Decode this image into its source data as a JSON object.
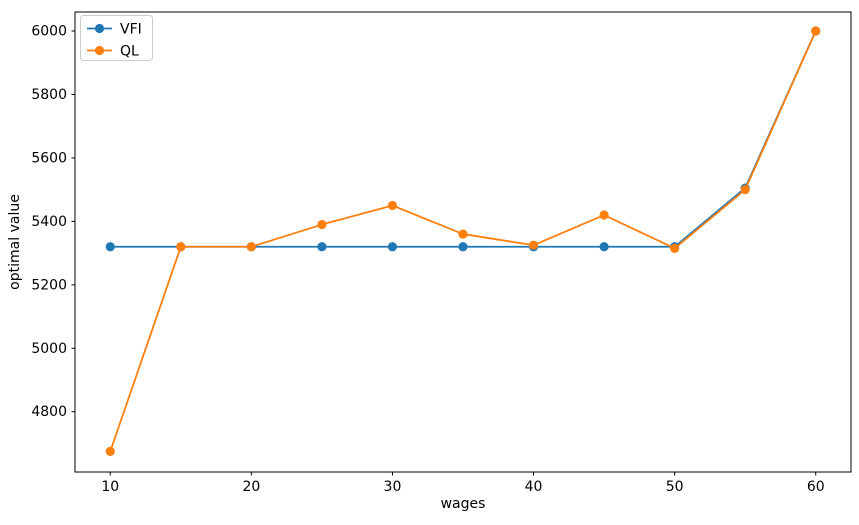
{
  "figure": {
    "background": "#ffffff",
    "spine_color": "#000000"
  },
  "chart_data": {
    "type": "line",
    "title": "",
    "xlabel": "wages",
    "ylabel": "optimal value",
    "x": [
      10,
      15,
      20,
      25,
      30,
      35,
      40,
      45,
      50,
      55,
      60
    ],
    "series": [
      {
        "name": "VFI",
        "color": "#1f77b4",
        "marker": "circle",
        "values": [
          5320,
          5320,
          5320,
          5320,
          5320,
          5320,
          5320,
          5320,
          5320,
          5505,
          6000
        ]
      },
      {
        "name": "QL",
        "color": "#ff7f0e",
        "marker": "circle",
        "values": [
          4675,
          5320,
          5320,
          5390,
          5450,
          5360,
          5325,
          5420,
          5315,
          5500,
          6000
        ]
      }
    ],
    "xlim": [
      7.5,
      62.5
    ],
    "ylim": [
      4610,
      6060
    ],
    "x_ticks": [
      10,
      20,
      30,
      40,
      50,
      60
    ],
    "y_ticks": [
      4800,
      5000,
      5200,
      5400,
      5600,
      5800,
      6000
    ],
    "grid": false,
    "legend_position": "upper left",
    "legend_labels": [
      "VFI",
      "QL"
    ]
  }
}
